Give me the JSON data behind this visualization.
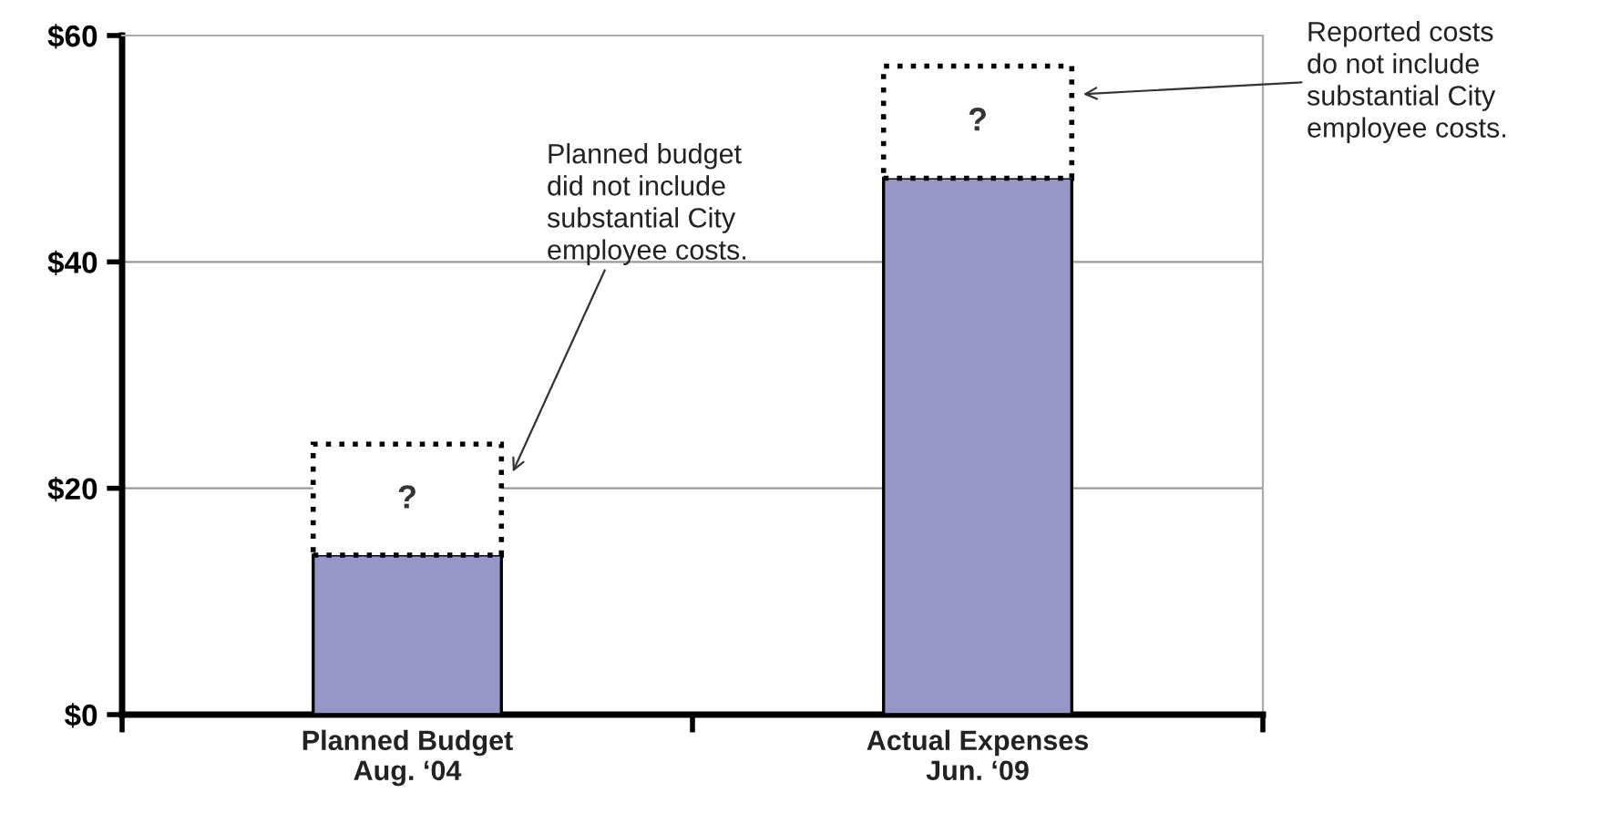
{
  "chart_data": {
    "type": "bar",
    "stacked": true,
    "categories": [
      "Planned Budget\nAug. ‘04",
      "Actual Expenses\nJun. ‘09"
    ],
    "series": [
      {
        "color": "#9696c8",
        "values": [
          14.1,
          47.4
        ]
      },
      {
        "color": "#ffffff",
        "values": [
          9.8,
          9.9
        ],
        "line_style": "dotted",
        "value_labels": [
          "?",
          "?"
        ]
      }
    ],
    "ylim": [
      0,
      60
    ],
    "yticks": [
      {
        "value": 0,
        "label": "$0"
      },
      {
        "value": 20,
        "label": "$20"
      },
      {
        "value": 40,
        "label": "$40"
      },
      {
        "value": 60,
        "label": "$60"
      }
    ],
    "grid": "y",
    "annotations": [
      "Planned budget\ndid not include\nsubstantial City\nemployee costs.",
      "Reported costs\ndo not include\nsubstantial City\nemployee costs."
    ]
  }
}
